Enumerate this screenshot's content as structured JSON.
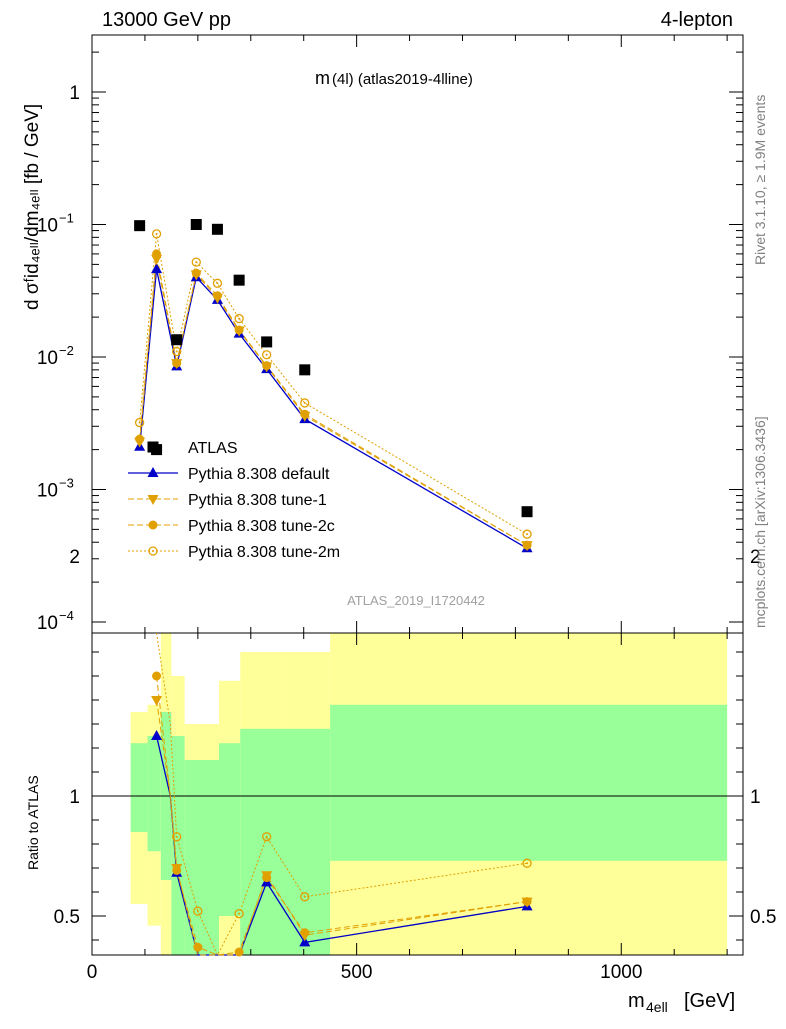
{
  "header": {
    "left": "13000 GeV pp",
    "right": "4-lepton"
  },
  "side": {
    "rivet": "Rivet 3.1.10, ≥ 1.9M events",
    "mcplots": "mcplots.cern.ch [arXiv:1306.3436]"
  },
  "plot": {
    "title_main": "m",
    "title_sub": "(4l)  (atlas2019-4lline)",
    "analysis_tag": "ATLAS_2019_I1720442",
    "y_label": "d σᶠid₄ₑₗₗ/dm₄ₑₗₗ [fb / GeV]",
    "ratio_label": "Ratio to ATLAS",
    "x_label": "m",
    "x_label_sub": "4ell",
    "x_label_unit": "[GeV]"
  },
  "colors": {
    "data": "#000000",
    "default": "#0000c8",
    "tunes": "#e0a000",
    "band_inner": "#99ff99",
    "band_outer": "#ffff99"
  },
  "chart_data": {
    "type": "scatter",
    "x_range": [
      0,
      1230
    ],
    "x_ticks": [
      0,
      500,
      1000
    ],
    "top_panel": {
      "y_scale": "log",
      "y_range": [
        0.0001,
        2.5
      ],
      "y_ticks": [
        "1",
        "10^-1",
        "10^-2",
        "10^-3",
        "10^-4"
      ],
      "legend_placement": "bottom-left"
    },
    "bottom_panel": {
      "y_range": [
        0.35,
        2.3
      ],
      "y_ticks": [
        0.5,
        1,
        2
      ]
    },
    "bins": [
      [
        80,
        100
      ],
      [
        100,
        115
      ],
      [
        115,
        130
      ],
      [
        130,
        150
      ],
      [
        150,
        170
      ],
      [
        170,
        220
      ],
      [
        220,
        260
      ],
      [
        260,
        300
      ],
      [
        300,
        360
      ],
      [
        360,
        450
      ],
      [
        450,
        1200
      ]
    ],
    "data": {
      "name": "ATLAS",
      "x": [
        90,
        122,
        160,
        197,
        237,
        278,
        330,
        402,
        822
      ],
      "y": [
        0.098,
        0.002,
        0.0135,
        0.1,
        0.092,
        0.038,
        0.013,
        0.008,
        0.00068
      ]
    },
    "band_bins": [
      [
        73,
        105
      ],
      [
        105,
        130
      ],
      [
        130,
        150
      ],
      [
        150,
        175
      ],
      [
        175,
        240
      ],
      [
        240,
        280
      ],
      [
        280,
        360
      ],
      [
        360,
        450
      ],
      [
        450,
        1200
      ]
    ],
    "ratio_band_inner": [
      [
        0.85,
        1.22
      ],
      [
        0.77,
        1.25
      ],
      [
        0.65,
        1.35
      ],
      [
        0.25,
        1.25
      ],
      [
        0.32,
        1.15
      ],
      [
        0.5,
        1.22
      ],
      [
        0.27,
        1.28
      ],
      [
        0.28,
        1.28
      ],
      [
        0.73,
        1.38
      ]
    ],
    "ratio_band_outer": [
      [
        0.55,
        1.35
      ],
      [
        0.46,
        1.38
      ],
      [
        0.3,
        1.8
      ],
      [
        0.2,
        1.5
      ],
      [
        0.2,
        1.3
      ],
      [
        0.2,
        1.48
      ],
      [
        0.2,
        1.6
      ],
      [
        0.2,
        1.6
      ],
      [
        0.2,
        1.68
      ]
    ],
    "series": [
      {
        "name": "Pythia 8.308 default",
        "marker": "triangle-up",
        "line": "solid",
        "x": [
          90,
          122,
          160,
          197,
          237,
          278,
          330,
          402,
          822
        ],
        "y": [
          0.0021,
          0.046,
          0.0085,
          0.04,
          0.027,
          0.015,
          0.0081,
          0.0034,
          0.00036
        ],
        "ratio_x": [
          122,
          148,
          160,
          200,
          237,
          278,
          330,
          402,
          822
        ],
        "ratio": [
          1.25,
          1.0,
          0.68,
          0.3,
          0.29,
          0.3,
          0.64,
          0.39,
          0.54
        ]
      },
      {
        "name": "Pythia 8.308 tune-1",
        "marker": "triangle-down",
        "line": "dashed",
        "x": [
          90,
          122,
          160,
          197,
          237,
          278,
          330,
          402,
          822
        ],
        "y": [
          0.0023,
          0.055,
          0.009,
          0.042,
          0.028,
          0.0158,
          0.0085,
          0.0036,
          0.00038
        ],
        "ratio_x": [
          122,
          148,
          160,
          200,
          237,
          278,
          330,
          402,
          822
        ],
        "ratio": [
          1.4,
          1.0,
          0.7,
          0.33,
          0.29,
          0.33,
          0.67,
          0.42,
          0.56
        ]
      },
      {
        "name": "Pythia 8.308 tune-2c",
        "marker": "circle",
        "line": "dashed",
        "x": [
          90,
          122,
          160,
          197,
          237,
          278,
          330,
          402,
          822
        ],
        "y": [
          0.0024,
          0.06,
          0.009,
          0.043,
          0.029,
          0.016,
          0.0086,
          0.0037,
          0.00038
        ],
        "ratio_x": [
          122,
          148,
          160,
          200,
          237,
          278,
          330,
          402,
          822
        ],
        "ratio": [
          1.5,
          1.0,
          0.69,
          0.37,
          0.3,
          0.35,
          0.66,
          0.43,
          0.56
        ]
      },
      {
        "name": "Pythia 8.308 tune-2m",
        "marker": "open-circle",
        "line": "dotted",
        "x": [
          90,
          122,
          160,
          197,
          237,
          278,
          330,
          402,
          822
        ],
        "y": [
          0.0032,
          0.085,
          0.011,
          0.052,
          0.036,
          0.0195,
          0.0104,
          0.0045,
          0.00046
        ],
        "ratio_x": [
          122,
          148,
          160,
          200,
          237,
          278,
          330,
          402,
          822
        ],
        "ratio": [
          2.02,
          1.3,
          0.83,
          0.52,
          0.3,
          0.51,
          0.83,
          0.58,
          0.72
        ]
      }
    ]
  }
}
